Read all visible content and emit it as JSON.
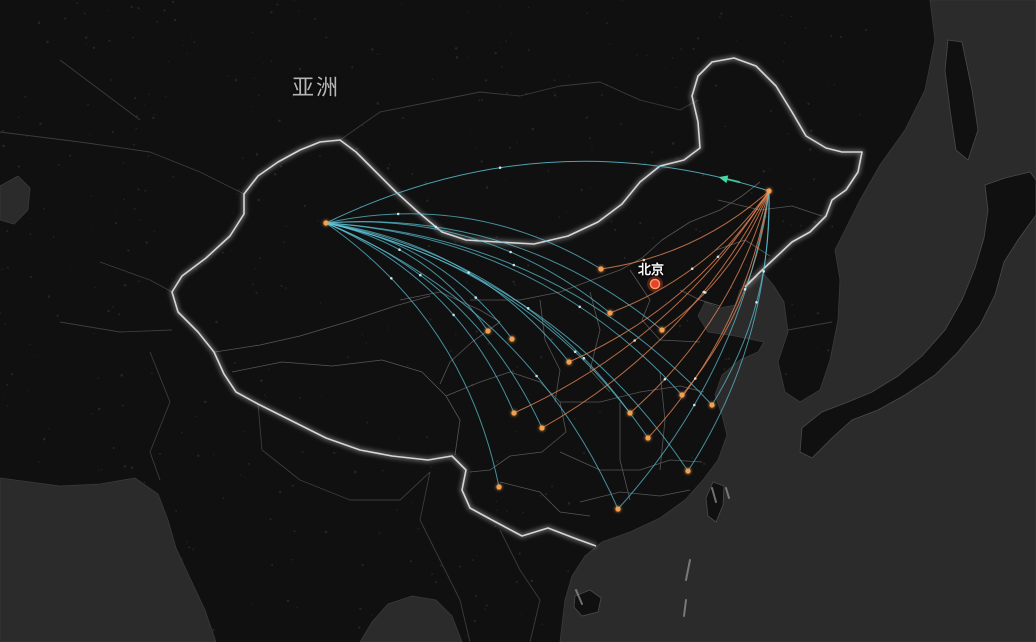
{
  "map": {
    "region_label": "亚洲",
    "city_label": "北京"
  },
  "colors": {
    "background": "#0e0e0e",
    "land": "#101010",
    "sea": "#2b2b2b",
    "china_border": "#e6e6e6",
    "province_border": "#565656",
    "country_border": "#3c3c3c",
    "route_west": "#5ec6da",
    "route_east": "#ec8a56",
    "destination_point": "#f4a04f",
    "beijing_marker": "#e6432f",
    "effect_arrow": "#43d8a4"
  },
  "icons": {
    "beijing_marker": "location-dot-icon",
    "effect_arrow": "arrow-icon"
  }
}
